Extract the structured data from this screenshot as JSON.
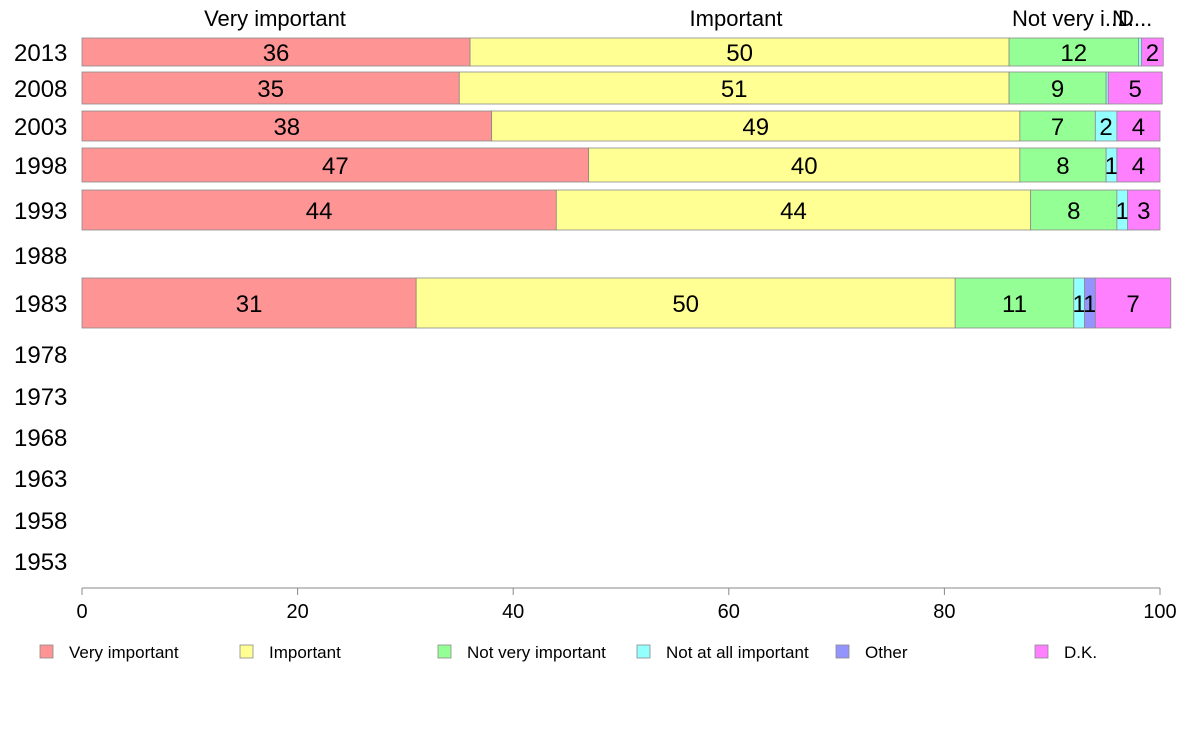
{
  "chart_data": {
    "type": "bar",
    "orientation": "horizontal",
    "stacked": true,
    "categories": [
      "2013",
      "2008",
      "2003",
      "1998",
      "1993",
      "1988",
      "1983",
      "1978",
      "1973",
      "1968",
      "1963",
      "1958",
      "1953"
    ],
    "series": [
      {
        "name": "Very important",
        "color": "#ff9494",
        "values": [
          36,
          35,
          38,
          47,
          44,
          null,
          31,
          null,
          null,
          null,
          null,
          null,
          null
        ],
        "labels": [
          "36",
          "35",
          "38",
          "47",
          "44",
          "",
          "31",
          "",
          "",
          "",
          "",
          "",
          ""
        ]
      },
      {
        "name": "Important",
        "color": "#ffff94",
        "values": [
          50,
          51,
          49,
          40,
          44,
          null,
          50,
          null,
          null,
          null,
          null,
          null,
          null
        ],
        "labels": [
          "50",
          "51",
          "49",
          "40",
          "44",
          "",
          "50",
          "",
          "",
          "",
          "",
          "",
          ""
        ]
      },
      {
        "name": "Not very important",
        "color": "#94ff94",
        "values": [
          12,
          9,
          7,
          8,
          8,
          null,
          11,
          null,
          null,
          null,
          null,
          null,
          null
        ],
        "labels": [
          "12",
          "9",
          "7",
          "8",
          "8",
          "",
          "11",
          "",
          "",
          "",
          "",
          "",
          ""
        ]
      },
      {
        "name": "Not at all important",
        "color": "#94ffff",
        "values": [
          0.3,
          0.2,
          2,
          1,
          1,
          null,
          1,
          null,
          null,
          null,
          null,
          null,
          null
        ],
        "labels": [
          "",
          "",
          "2",
          "1",
          "1",
          "",
          "1",
          "",
          "",
          "",
          "",
          "",
          ""
        ]
      },
      {
        "name": "Other",
        "color": "#9494ff",
        "values": [
          0,
          0,
          0,
          0,
          0,
          null,
          1,
          null,
          null,
          null,
          null,
          null,
          null
        ],
        "labels": [
          "",
          "",
          "",
          "",
          "",
          "",
          "1",
          "",
          "",
          "",
          "",
          "",
          ""
        ]
      },
      {
        "name": "D.K.",
        "color": "#ff80ff",
        "values": [
          2,
          5,
          4,
          4,
          3,
          null,
          7,
          null,
          null,
          null,
          null,
          null,
          null
        ],
        "labels": [
          "2",
          "5",
          "4",
          "4",
          "3",
          "",
          "7",
          "",
          "",
          "",
          "",
          "",
          ""
        ]
      }
    ],
    "header_labels": [
      "Very important",
      "Important",
      "Not very i...",
      "N...",
      "D..."
    ],
    "xlim": [
      0,
      100
    ],
    "xticks": [
      "0",
      "20",
      "40",
      "60",
      "80",
      "100"
    ],
    "legend": {
      "position": "bottom",
      "entries": [
        "Very important",
        "Important",
        "Not very important",
        "Not at all important",
        "Other",
        "D.K."
      ]
    },
    "grid": false
  }
}
